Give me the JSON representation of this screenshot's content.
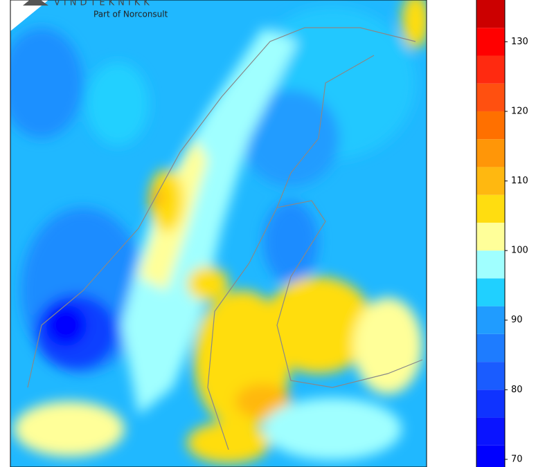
{
  "logo": {
    "name": "VINDTEKNIKK",
    "tagline": "Part of Norconsult"
  },
  "colorbar": {
    "levels": [
      68,
      72,
      76,
      80,
      84,
      88,
      92,
      96,
      100,
      104,
      108,
      112,
      116,
      120,
      124,
      128,
      132,
      136
    ],
    "colors": [
      "#0000ff",
      "#0a14ff",
      "#0f33ff",
      "#1a5cff",
      "#1e7cff",
      "#209cff",
      "#20d0ff",
      "#a0ffff",
      "#ffff99",
      "#ffdd10",
      "#ffb810",
      "#ff9608",
      "#ff7000",
      "#ff5010",
      "#ff2a10",
      "#ff0000",
      "#cc0000"
    ],
    "ylim": [
      68.9,
      136
    ],
    "yticks": [
      70,
      80,
      90,
      100,
      110,
      120,
      130
    ]
  }
}
